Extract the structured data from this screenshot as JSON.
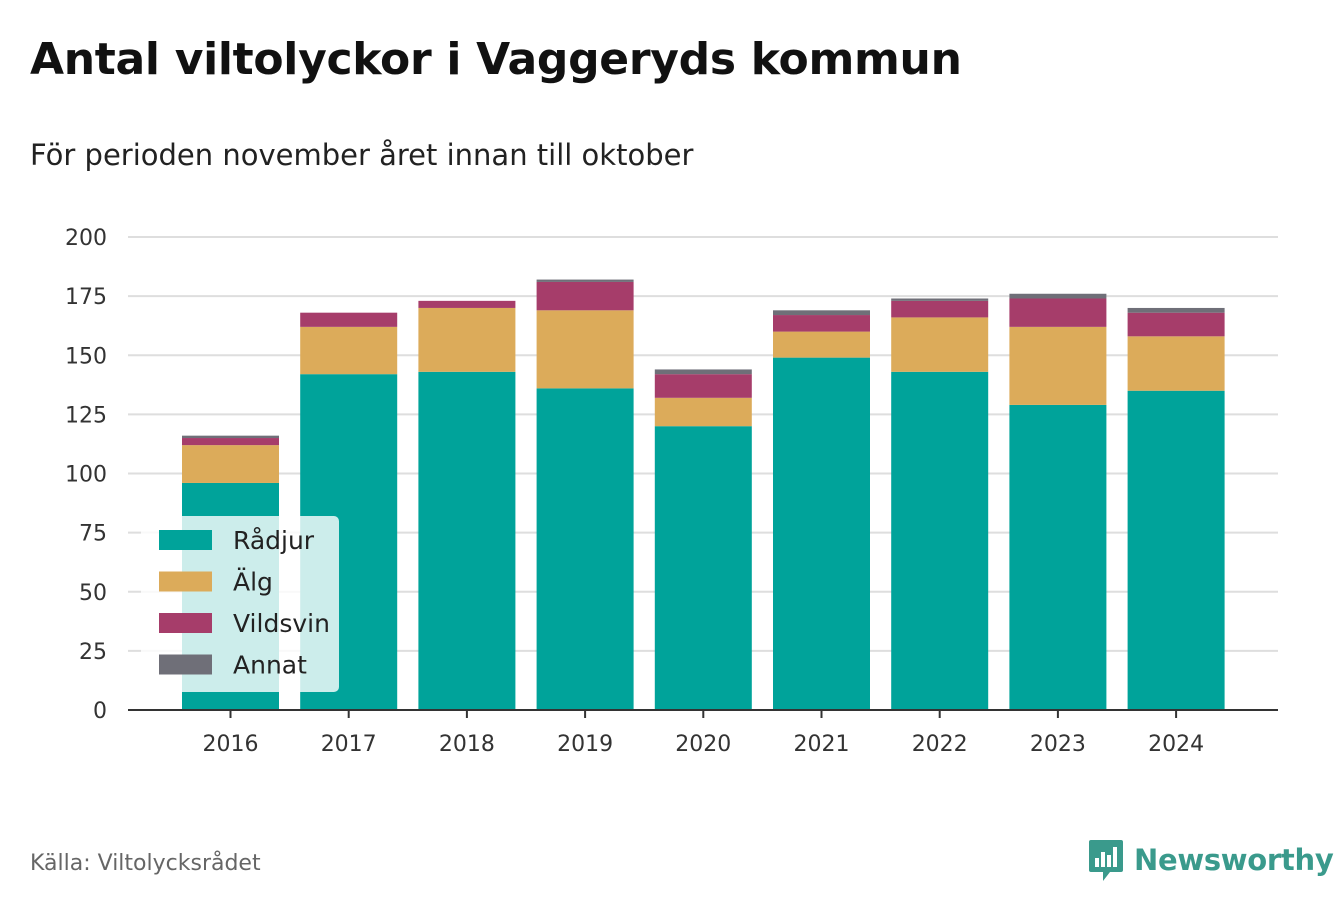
{
  "title": "Antal viltolyckor i Vaggeryds kommun",
  "subtitle": "För perioden november året innan till oktober",
  "source": "Källa: Viltolycksrådet",
  "brand": {
    "name": "Newsworthy",
    "icon": "newsworthy-logo-icon",
    "color": "#3a9a8c"
  },
  "chart_data": {
    "type": "bar",
    "stacked": true,
    "categories": [
      "2016",
      "2017",
      "2018",
      "2019",
      "2020",
      "2021",
      "2022",
      "2023",
      "2024"
    ],
    "series": [
      {
        "name": "Rådjur",
        "color": "#00a39a",
        "values": [
          96,
          142,
          143,
          136,
          120,
          149,
          143,
          129,
          135
        ]
      },
      {
        "name": "Älg",
        "color": "#dcab5a",
        "values": [
          16,
          20,
          27,
          33,
          12,
          11,
          23,
          33,
          23
        ]
      },
      {
        "name": "Vildsvin",
        "color": "#a63d6a",
        "values": [
          3,
          6,
          3,
          12,
          10,
          7,
          7,
          12,
          10
        ]
      },
      {
        "name": "Annat",
        "color": "#6f6f78",
        "values": [
          1,
          0,
          0,
          1,
          2,
          2,
          1,
          2,
          2
        ]
      }
    ],
    "ylim": [
      0,
      200
    ],
    "yticks": [
      0,
      25,
      50,
      75,
      100,
      125,
      150,
      175,
      200
    ],
    "grid": true,
    "legend_position": "bottom-left"
  }
}
